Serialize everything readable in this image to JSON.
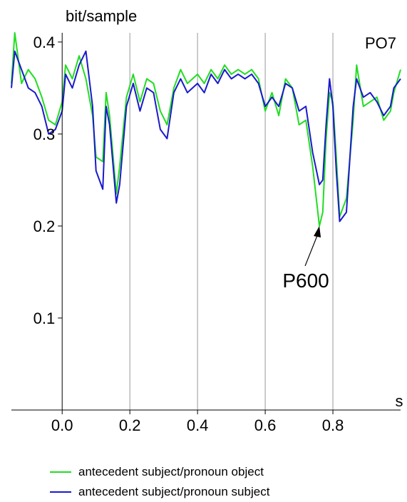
{
  "chart_data": {
    "type": "line",
    "ylabel": "bit/sample",
    "xlabel": "s",
    "panel_label": "PO7",
    "xlim": [
      -0.15,
      1.0
    ],
    "ylim": [
      0.0,
      0.41
    ],
    "xticks": [
      0.0,
      0.2,
      0.4,
      0.6,
      0.8
    ],
    "xtick_labels": [
      "0.0",
      "0.2",
      "0.4",
      "0.6",
      "0.8"
    ],
    "yticks": [
      0.1,
      0.2,
      0.3,
      0.4
    ],
    "ytick_labels": [
      "0.1",
      "0.2",
      "0.3",
      "0.4"
    ],
    "vertical_gridlines": [
      0.2,
      0.4,
      0.6,
      0.8
    ],
    "annotation": {
      "text": "P600",
      "points_to": [
        0.76,
        0.2
      ]
    },
    "series": [
      {
        "name": "antecedent subject/pronoun object",
        "color": "#22dd22",
        "points": [
          [
            -0.15,
            0.355
          ],
          [
            -0.14,
            0.41
          ],
          [
            -0.12,
            0.355
          ],
          [
            -0.1,
            0.37
          ],
          [
            -0.08,
            0.36
          ],
          [
            -0.06,
            0.34
          ],
          [
            -0.04,
            0.315
          ],
          [
            -0.02,
            0.31
          ],
          [
            0.0,
            0.335
          ],
          [
            0.01,
            0.375
          ],
          [
            0.03,
            0.36
          ],
          [
            0.05,
            0.385
          ],
          [
            0.07,
            0.36
          ],
          [
            0.09,
            0.32
          ],
          [
            0.1,
            0.275
          ],
          [
            0.12,
            0.27
          ],
          [
            0.13,
            0.345
          ],
          [
            0.14,
            0.32
          ],
          [
            0.16,
            0.235
          ],
          [
            0.17,
            0.265
          ],
          [
            0.19,
            0.34
          ],
          [
            0.21,
            0.365
          ],
          [
            0.23,
            0.335
          ],
          [
            0.25,
            0.36
          ],
          [
            0.27,
            0.355
          ],
          [
            0.29,
            0.325
          ],
          [
            0.31,
            0.31
          ],
          [
            0.33,
            0.35
          ],
          [
            0.35,
            0.37
          ],
          [
            0.37,
            0.355
          ],
          [
            0.4,
            0.365
          ],
          [
            0.42,
            0.355
          ],
          [
            0.44,
            0.37
          ],
          [
            0.46,
            0.36
          ],
          [
            0.48,
            0.375
          ],
          [
            0.5,
            0.365
          ],
          [
            0.52,
            0.37
          ],
          [
            0.54,
            0.365
          ],
          [
            0.56,
            0.37
          ],
          [
            0.58,
            0.36
          ],
          [
            0.6,
            0.325
          ],
          [
            0.62,
            0.345
          ],
          [
            0.64,
            0.32
          ],
          [
            0.66,
            0.36
          ],
          [
            0.68,
            0.35
          ],
          [
            0.7,
            0.31
          ],
          [
            0.72,
            0.315
          ],
          [
            0.74,
            0.265
          ],
          [
            0.76,
            0.2
          ],
          [
            0.77,
            0.215
          ],
          [
            0.78,
            0.295
          ],
          [
            0.79,
            0.345
          ],
          [
            0.8,
            0.335
          ],
          [
            0.81,
            0.275
          ],
          [
            0.82,
            0.21
          ],
          [
            0.84,
            0.23
          ],
          [
            0.86,
            0.315
          ],
          [
            0.87,
            0.375
          ],
          [
            0.89,
            0.33
          ],
          [
            0.91,
            0.335
          ],
          [
            0.93,
            0.34
          ],
          [
            0.95,
            0.315
          ],
          [
            0.97,
            0.325
          ],
          [
            0.98,
            0.345
          ],
          [
            1.0,
            0.37
          ]
        ]
      },
      {
        "name": "antecedent subject/pronoun subject",
        "color": "#1a1acc",
        "points": [
          [
            -0.15,
            0.35
          ],
          [
            -0.14,
            0.39
          ],
          [
            -0.12,
            0.37
          ],
          [
            -0.1,
            0.35
          ],
          [
            -0.08,
            0.345
          ],
          [
            -0.06,
            0.33
          ],
          [
            -0.04,
            0.3
          ],
          [
            -0.02,
            0.305
          ],
          [
            0.0,
            0.325
          ],
          [
            0.01,
            0.365
          ],
          [
            0.03,
            0.35
          ],
          [
            0.05,
            0.375
          ],
          [
            0.07,
            0.39
          ],
          [
            0.09,
            0.33
          ],
          [
            0.1,
            0.26
          ],
          [
            0.12,
            0.24
          ],
          [
            0.13,
            0.33
          ],
          [
            0.14,
            0.31
          ],
          [
            0.16,
            0.225
          ],
          [
            0.17,
            0.245
          ],
          [
            0.19,
            0.33
          ],
          [
            0.21,
            0.355
          ],
          [
            0.23,
            0.325
          ],
          [
            0.25,
            0.35
          ],
          [
            0.27,
            0.345
          ],
          [
            0.29,
            0.305
          ],
          [
            0.31,
            0.295
          ],
          [
            0.33,
            0.345
          ],
          [
            0.35,
            0.36
          ],
          [
            0.37,
            0.345
          ],
          [
            0.4,
            0.355
          ],
          [
            0.42,
            0.345
          ],
          [
            0.44,
            0.365
          ],
          [
            0.46,
            0.355
          ],
          [
            0.48,
            0.37
          ],
          [
            0.5,
            0.36
          ],
          [
            0.52,
            0.365
          ],
          [
            0.54,
            0.36
          ],
          [
            0.56,
            0.365
          ],
          [
            0.58,
            0.355
          ],
          [
            0.6,
            0.33
          ],
          [
            0.62,
            0.34
          ],
          [
            0.64,
            0.33
          ],
          [
            0.66,
            0.355
          ],
          [
            0.68,
            0.35
          ],
          [
            0.7,
            0.325
          ],
          [
            0.72,
            0.33
          ],
          [
            0.74,
            0.28
          ],
          [
            0.76,
            0.245
          ],
          [
            0.77,
            0.25
          ],
          [
            0.78,
            0.31
          ],
          [
            0.79,
            0.36
          ],
          [
            0.8,
            0.33
          ],
          [
            0.81,
            0.26
          ],
          [
            0.82,
            0.205
          ],
          [
            0.84,
            0.215
          ],
          [
            0.86,
            0.33
          ],
          [
            0.87,
            0.36
          ],
          [
            0.89,
            0.34
          ],
          [
            0.91,
            0.345
          ],
          [
            0.93,
            0.335
          ],
          [
            0.95,
            0.32
          ],
          [
            0.97,
            0.33
          ],
          [
            0.98,
            0.35
          ],
          [
            1.0,
            0.36
          ]
        ]
      }
    ]
  }
}
